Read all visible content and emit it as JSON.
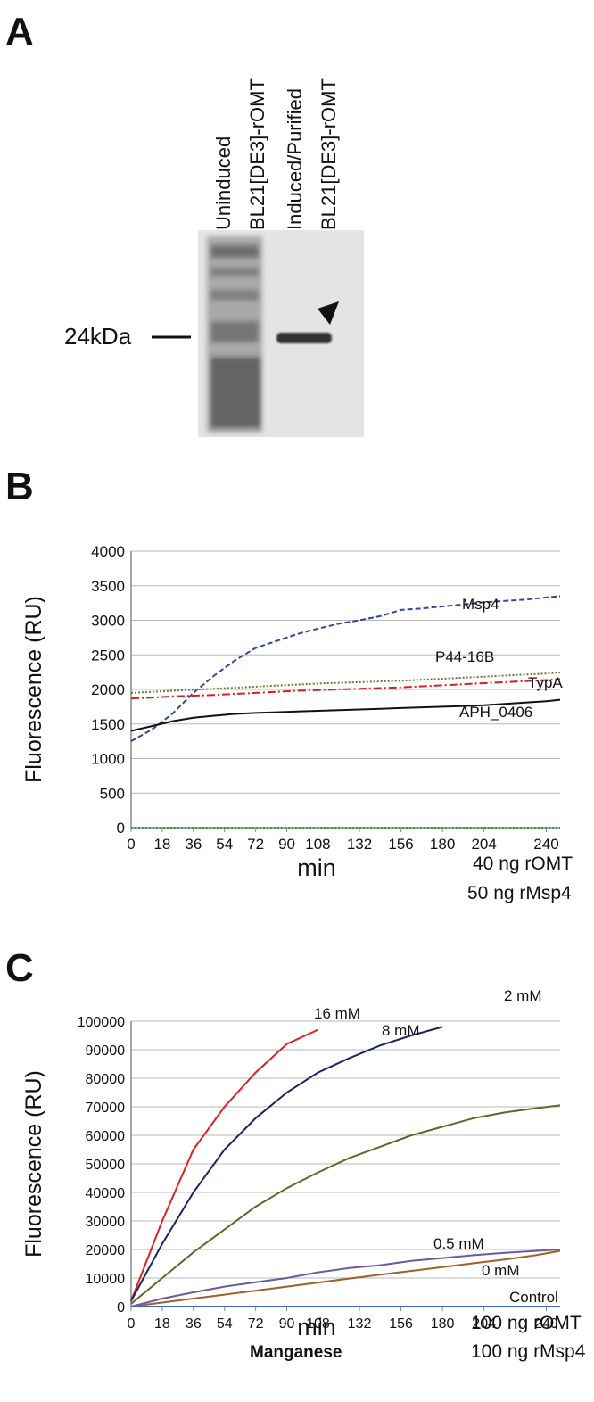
{
  "gel": {
    "panel": "A",
    "lanes": [
      "Uninduced",
      "BL21[DE3]-rOMT",
      "Induced/Purified",
      "BL21[DE3]-rOMT"
    ],
    "marker": "24kDa"
  },
  "chart_data": [
    {
      "type": "line",
      "panel": "B",
      "y_label": "Fluorescence (RU)",
      "x_label": "min",
      "annotations": [
        "40 ng rOMT",
        "50 ng rMsp4"
      ],
      "x": [
        0,
        12,
        24,
        36,
        48,
        60,
        72,
        84,
        96,
        108,
        120,
        132,
        144,
        156,
        168,
        180,
        192,
        204,
        216,
        228,
        240,
        248
      ],
      "xlim": [
        0,
        248
      ],
      "xticks": [
        0,
        18,
        36,
        54,
        72,
        90,
        108,
        132,
        156,
        180,
        204,
        240
      ],
      "ylim": [
        0,
        4000
      ],
      "yticks": [
        0,
        500,
        1000,
        1500,
        2000,
        2500,
        3000,
        3500,
        4000
      ],
      "grid": true,
      "series": [
        {
          "name": "Msp4",
          "color": "#2e4a9a",
          "style": "dashed",
          "values": [
            1250,
            1420,
            1650,
            1950,
            2200,
            2420,
            2600,
            2700,
            2800,
            2880,
            2950,
            3000,
            3060,
            3150,
            3170,
            3200,
            3230,
            3260,
            3280,
            3300,
            3330,
            3350
          ]
        },
        {
          "name": "P44-16B",
          "color": "#6b7a3a",
          "style": "dotted",
          "values": [
            1950,
            1965,
            1980,
            1995,
            2010,
            2025,
            2040,
            2055,
            2070,
            2085,
            2095,
            2105,
            2115,
            2125,
            2140,
            2155,
            2170,
            2185,
            2200,
            2215,
            2230,
            2245
          ]
        },
        {
          "name": "TypA",
          "color": "#d42020",
          "style": "dashdot",
          "values": [
            1870,
            1880,
            1900,
            1910,
            1920,
            1935,
            1950,
            1965,
            1980,
            1990,
            2000,
            2010,
            2020,
            2030,
            2045,
            2060,
            2075,
            2090,
            2105,
            2120,
            2135,
            2150
          ]
        },
        {
          "name": "APH_0406",
          "color": "#111111",
          "style": "solid",
          "values": [
            1400,
            1470,
            1540,
            1590,
            1620,
            1645,
            1660,
            1670,
            1680,
            1690,
            1700,
            1710,
            1720,
            1730,
            1740,
            1750,
            1760,
            1770,
            1790,
            1810,
            1830,
            1850
          ]
        },
        {
          "color": "#3a9a3a",
          "style": "dotted",
          "values": [
            0,
            0,
            0,
            0,
            0,
            0,
            0,
            0,
            0,
            0,
            0,
            0,
            0,
            0,
            0,
            0,
            0,
            0,
            0,
            0,
            0,
            0
          ]
        }
      ]
    },
    {
      "type": "line",
      "panel": "C",
      "y_label": "Fluorescence (RU)",
      "x_label": "min",
      "annotations": [
        "100 ng rOMT",
        "Manganese",
        "100 ng rMsp4"
      ],
      "x": [
        0,
        18,
        36,
        54,
        72,
        90,
        108,
        126,
        144,
        162,
        180,
        198,
        216,
        234,
        248
      ],
      "xlim": [
        0,
        248
      ],
      "xticks": [
        0,
        18,
        36,
        54,
        72,
        90,
        108,
        132,
        156,
        180,
        204,
        240
      ],
      "ylim": [
        0,
        100000
      ],
      "yticks": [
        0,
        10000,
        20000,
        30000,
        40000,
        50000,
        60000,
        70000,
        80000,
        90000,
        100000
      ],
      "grid": true,
      "series": [
        {
          "name": "16 mM",
          "color": "#e02020",
          "style": "solid",
          "values": [
            2000,
            30000,
            55000,
            70000,
            82000,
            92000,
            97000,
            null,
            null,
            null,
            null,
            null,
            null,
            null,
            null
          ]
        },
        {
          "name": "8 mM",
          "color": "#1a2560",
          "style": "solid",
          "values": [
            2000,
            22000,
            40000,
            55000,
            66000,
            75000,
            82000,
            87000,
            91500,
            95000,
            98000,
            null,
            null,
            null,
            null
          ]
        },
        {
          "name": "2 mM",
          "color": "#5a6a2a",
          "style": "solid",
          "values": [
            1000,
            10000,
            19000,
            27000,
            35000,
            41500,
            47000,
            52000,
            56000,
            60000,
            63000,
            66000,
            68000,
            69500,
            70500
          ]
        },
        {
          "name": "0.5 mM",
          "color": "#6a5aa0",
          "style": "solid",
          "values": [
            0,
            2800,
            5000,
            7000,
            8500,
            10000,
            12000,
            13500,
            14500,
            16000,
            17000,
            18000,
            18800,
            19500,
            20000
          ]
        },
        {
          "name": "0 mM",
          "color": "#a0602a",
          "style": "solid",
          "values": [
            0,
            1400,
            2800,
            4200,
            5600,
            7000,
            8400,
            9800,
            11200,
            12500,
            13800,
            15200,
            16500,
            18000,
            19500
          ]
        },
        {
          "name": "Control",
          "color": "#3a6ad0",
          "style": "solid",
          "values": [
            0,
            0,
            0,
            0,
            0,
            0,
            0,
            0,
            0,
            0,
            0,
            0,
            0,
            0,
            0
          ]
        }
      ]
    }
  ]
}
